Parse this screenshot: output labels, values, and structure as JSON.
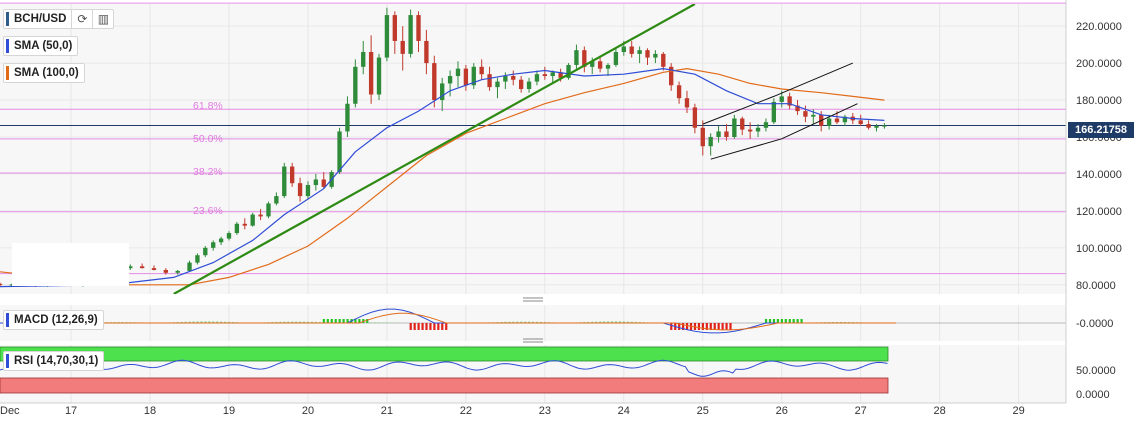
{
  "symbol": {
    "label": "BCH/USD"
  },
  "indicators": {
    "sma50": {
      "label": "SMA (50,0)",
      "color": "#2f4dd6"
    },
    "sma100": {
      "label": "SMA (100,0)",
      "color": "#e26b1a"
    },
    "macd": {
      "label": "MACD (12,26,9)"
    },
    "rsi": {
      "label": "RSI (14,70,30,1)"
    }
  },
  "toolbar": {
    "refresh_icon": "refresh-icon",
    "bars_icon": "bar-chart-icon"
  },
  "last_price": {
    "label": "166.21758"
  },
  "fib_levels": [
    {
      "label": "61.8%",
      "price": 175
    },
    {
      "label": "50.0%",
      "price": 159
    },
    {
      "label": "38.2%",
      "price": 140.5
    },
    {
      "label": "23.6%",
      "price": 119.5
    },
    {
      "label": "",
      "price": 232.5
    },
    {
      "label": "",
      "price": 86
    }
  ],
  "chart_data": {
    "type": "candlestick",
    "title": "BCH/USD",
    "x_tick_labels": [
      "Dec",
      "17",
      "18",
      "19",
      "20",
      "21",
      "22",
      "23",
      "24",
      "25",
      "26",
      "27",
      "28",
      "29"
    ],
    "x_ticks_day": [
      16,
      17,
      18,
      19,
      20,
      21,
      22,
      23,
      24,
      25,
      26,
      27,
      28,
      29
    ],
    "y_ticks": [
      80,
      100,
      120,
      140,
      160,
      180,
      200,
      220
    ],
    "y_tick_labels": [
      "80.0000",
      "100.0000",
      "120.0000",
      "140.0000",
      "160.0000",
      "180.0000",
      "200.0000",
      "220.0000"
    ],
    "ylim": [
      75,
      232
    ],
    "xlim": [
      16.1,
      29.6
    ],
    "grid": true,
    "sma50": [
      [
        16.1,
        79
      ],
      [
        17.5,
        80
      ],
      [
        18.3,
        84
      ],
      [
        18.8,
        92
      ],
      [
        19.3,
        104
      ],
      [
        19.7,
        118
      ],
      [
        20.2,
        132
      ],
      [
        20.6,
        152
      ],
      [
        21.0,
        165
      ],
      [
        21.4,
        174
      ],
      [
        21.8,
        185
      ],
      [
        22.2,
        191
      ],
      [
        22.6,
        194
      ],
      [
        23.0,
        196
      ],
      [
        23.5,
        193
      ],
      [
        24.0,
        194
      ],
      [
        24.5,
        197
      ],
      [
        24.9,
        194
      ],
      [
        25.3,
        185
      ],
      [
        25.7,
        178
      ],
      [
        26.1,
        178
      ],
      [
        26.5,
        172
      ],
      [
        26.9,
        170
      ],
      [
        27.3,
        169
      ]
    ],
    "sma100": [
      [
        16.1,
        87
      ],
      [
        17.0,
        83
      ],
      [
        17.7,
        80
      ],
      [
        18.5,
        80
      ],
      [
        19.0,
        84
      ],
      [
        19.5,
        91
      ],
      [
        20.0,
        101
      ],
      [
        20.5,
        116
      ],
      [
        21.0,
        133
      ],
      [
        21.5,
        150
      ],
      [
        22.0,
        162
      ],
      [
        22.5,
        170
      ],
      [
        23.0,
        178
      ],
      [
        23.5,
        184
      ],
      [
        24.0,
        189
      ],
      [
        24.5,
        195
      ],
      [
        24.8,
        197
      ],
      [
        25.2,
        194
      ],
      [
        25.6,
        189
      ],
      [
        26.0,
        186
      ],
      [
        26.5,
        184
      ],
      [
        26.9,
        182
      ],
      [
        27.3,
        180
      ]
    ],
    "trendline": [
      [
        18.3,
        75
      ],
      [
        24.9,
        232
      ]
    ],
    "channel_upper": [
      [
        25.0,
        167
      ],
      [
        25.9,
        182
      ],
      [
        26.9,
        200
      ]
    ],
    "channel_lower": [
      [
        25.1,
        148
      ],
      [
        26.0,
        159
      ],
      [
        26.96,
        178
      ]
    ],
    "candles": [
      [
        16.1,
        80.5,
        81.2,
        79.2,
        79.8
      ],
      [
        16.25,
        79.8,
        80.6,
        78.9,
        80.2
      ],
      [
        16.4,
        80.2,
        81.0,
        79.6,
        79.9
      ],
      [
        16.55,
        79.9,
        80.4,
        78.8,
        79.5
      ],
      [
        16.7,
        79.5,
        80.3,
        78.9,
        80.1
      ],
      [
        16.85,
        80.1,
        80.8,
        79.5,
        80.0
      ],
      [
        17.0,
        80.0,
        80.9,
        79.3,
        79.6
      ],
      [
        17.15,
        79.6,
        80.6,
        79.0,
        80.3
      ],
      [
        17.3,
        80.3,
        81.0,
        79.7,
        80.0
      ],
      [
        17.45,
        80.0,
        84.0,
        79.8,
        83.0
      ],
      [
        17.55,
        83.0,
        88.0,
        82.5,
        87.5
      ],
      [
        17.65,
        87.5,
        90.0,
        86.0,
        89.0
      ],
      [
        17.75,
        89.0,
        91.0,
        88.0,
        90.0
      ],
      [
        17.9,
        90.0,
        91.5,
        88.8,
        89.0
      ],
      [
        18.05,
        89.0,
        90.5,
        87.8,
        88.0
      ],
      [
        18.2,
        88.0,
        89.0,
        85.5,
        86.5
      ],
      [
        18.35,
        86.5,
        88.0,
        85.5,
        87.5
      ],
      [
        18.5,
        87.5,
        93.0,
        87.0,
        92.0
      ],
      [
        18.6,
        92.0,
        97.0,
        91.0,
        96.0
      ],
      [
        18.7,
        96.0,
        101.0,
        95.0,
        100.0
      ],
      [
        18.8,
        100.0,
        104.0,
        98.5,
        103.0
      ],
      [
        18.9,
        103.0,
        106.0,
        101.5,
        105.0
      ],
      [
        19.0,
        105.0,
        109.0,
        104.0,
        108.0
      ],
      [
        19.1,
        108.0,
        114.0,
        107.0,
        113.0
      ],
      [
        19.2,
        113.0,
        116.0,
        110.0,
        112.0
      ],
      [
        19.3,
        112.0,
        119.0,
        111.5,
        118.0
      ],
      [
        19.4,
        118.0,
        121.0,
        115.0,
        117.0
      ],
      [
        19.5,
        117.0,
        125.0,
        116.0,
        124.0
      ],
      [
        19.6,
        124.0,
        130.0,
        123.0,
        128.0
      ],
      [
        19.7,
        128.0,
        146.0,
        127.0,
        144.0
      ],
      [
        19.8,
        144.0,
        146.0,
        133.0,
        135.0
      ],
      [
        19.9,
        135.0,
        138.0,
        125.0,
        128.0
      ],
      [
        20.0,
        128.0,
        136.0,
        126.0,
        134.0
      ],
      [
        20.1,
        134.0,
        140.0,
        131.0,
        137.0
      ],
      [
        20.2,
        137.0,
        141.0,
        132.0,
        133.0
      ],
      [
        20.3,
        133.0,
        142.0,
        132.0,
        141.0
      ],
      [
        20.4,
        141.0,
        165.0,
        140.0,
        163.0
      ],
      [
        20.5,
        163.0,
        182.0,
        160.0,
        178.0
      ],
      [
        20.6,
        178.0,
        202.0,
        176.0,
        198.0
      ],
      [
        20.7,
        198.0,
        212.0,
        194.0,
        206.0
      ],
      [
        20.8,
        206.0,
        215.0,
        178.0,
        183.0
      ],
      [
        20.9,
        183.0,
        205.0,
        180.0,
        203.0
      ],
      [
        21.0,
        203.0,
        230.0,
        201.0,
        226.0
      ],
      [
        21.1,
        226.0,
        228.0,
        205.0,
        212.0
      ],
      [
        21.2,
        212.0,
        220.0,
        196.0,
        205.0
      ],
      [
        21.3,
        205.0,
        229.0,
        203.0,
        226.0
      ],
      [
        21.4,
        226.0,
        228.0,
        206.0,
        212.0
      ],
      [
        21.5,
        212.0,
        218.0,
        194.0,
        200.0
      ],
      [
        21.6,
        200.0,
        204.0,
        176.0,
        180.0
      ],
      [
        21.7,
        180.0,
        192.0,
        174.0,
        189.0
      ],
      [
        21.8,
        189.0,
        196.0,
        182.0,
        193.0
      ],
      [
        21.9,
        193.0,
        201.0,
        187.0,
        197.0
      ],
      [
        22.0,
        197.0,
        199.0,
        185.0,
        188.0
      ],
      [
        22.1,
        188.0,
        200.0,
        186.0,
        198.0
      ],
      [
        22.2,
        198.0,
        202.0,
        191.0,
        194.0
      ],
      [
        22.3,
        194.0,
        198.0,
        185.0,
        187.0
      ],
      [
        22.4,
        187.0,
        192.0,
        181.0,
        190.0
      ],
      [
        22.5,
        190.0,
        195.0,
        186.0,
        193.0
      ],
      [
        22.6,
        193.0,
        196.0,
        188.0,
        191.0
      ],
      [
        22.7,
        191.0,
        193.0,
        184.0,
        186.0
      ],
      [
        22.8,
        186.0,
        192.0,
        184.0,
        190.0
      ],
      [
        22.9,
        190.0,
        196.0,
        188.0,
        194.0
      ],
      [
        23.0,
        194.0,
        198.0,
        191.0,
        193.0
      ],
      [
        23.1,
        193.0,
        196.0,
        189.0,
        195.0
      ],
      [
        23.2,
        195.0,
        197.0,
        190.0,
        192.0
      ],
      [
        23.3,
        192.0,
        200.0,
        191.0,
        199.0
      ],
      [
        23.4,
        199.0,
        210.0,
        197.0,
        207.0
      ],
      [
        23.5,
        207.0,
        209.0,
        195.0,
        198.0
      ],
      [
        23.6,
        198.0,
        203.0,
        194.0,
        201.0
      ],
      [
        23.7,
        201.0,
        204.0,
        195.0,
        197.0
      ],
      [
        23.8,
        197.0,
        200.0,
        193.0,
        199.0
      ],
      [
        23.9,
        199.0,
        208.0,
        198.0,
        206.0
      ],
      [
        24.0,
        206.0,
        212.0,
        204.0,
        209.0
      ],
      [
        24.1,
        209.0,
        212.0,
        203.0,
        205.0
      ],
      [
        24.2,
        205.0,
        209.0,
        200.0,
        207.0
      ],
      [
        24.3,
        207.0,
        208.0,
        199.0,
        203.0
      ],
      [
        24.4,
        203.0,
        207.0,
        200.0,
        205.0
      ],
      [
        24.5,
        205.0,
        206.0,
        196.0,
        198.0
      ],
      [
        24.6,
        198.0,
        200.0,
        185.0,
        188.0
      ],
      [
        24.7,
        188.0,
        190.0,
        178.0,
        181.0
      ],
      [
        24.8,
        181.0,
        185.0,
        173.0,
        176.0
      ],
      [
        24.9,
        176.0,
        178.0,
        162.0,
        165.0
      ],
      [
        25.0,
        165.0,
        169.0,
        150.0,
        155.0
      ],
      [
        25.1,
        155.0,
        162.0,
        150.0,
        160.0
      ],
      [
        25.2,
        160.0,
        166.0,
        157.0,
        163.0
      ],
      [
        25.3,
        163.0,
        167.0,
        158.0,
        160.0
      ],
      [
        25.4,
        160.0,
        172.0,
        159.0,
        170.0
      ],
      [
        25.5,
        170.0,
        171.0,
        161.0,
        164.0
      ],
      [
        25.6,
        164.0,
        168.0,
        159.0,
        163.0
      ],
      [
        25.7,
        163.0,
        167.0,
        160.0,
        165.0
      ],
      [
        25.8,
        165.0,
        170.0,
        163.0,
        168.0
      ],
      [
        25.9,
        168.0,
        181.0,
        167.0,
        179.0
      ],
      [
        26.0,
        179.0,
        185.0,
        176.0,
        182.0
      ],
      [
        26.1,
        182.0,
        184.0,
        175.0,
        177.0
      ],
      [
        26.2,
        177.0,
        180.0,
        172.0,
        174.0
      ],
      [
        26.3,
        174.0,
        177.0,
        168.0,
        171.0
      ],
      [
        26.4,
        171.0,
        175.0,
        167.0,
        172.0
      ],
      [
        26.5,
        172.0,
        174.0,
        163.0,
        166.0
      ],
      [
        26.6,
        166.0,
        172.0,
        164.0,
        170.0
      ],
      [
        26.7,
        170.0,
        174.0,
        167.0,
        168.0
      ],
      [
        26.8,
        168.0,
        172.0,
        166.0,
        171.0
      ],
      [
        26.9,
        171.0,
        173.0,
        167.0,
        169.0
      ],
      [
        27.0,
        169.0,
        172.0,
        166.0,
        167.0
      ],
      [
        27.1,
        167.0,
        169.0,
        164.0,
        165.0
      ],
      [
        27.2,
        165.0,
        167.0,
        163.0,
        166.0
      ],
      [
        27.3,
        166.0,
        167.5,
        164.5,
        166.2
      ]
    ],
    "macd_panel": {
      "ytick_label": "-0.0000"
    },
    "rsi_panel": {
      "ytick_labels": [
        "50.0000",
        "0.0000"
      ],
      "overbought": 70,
      "oversold": 30
    }
  }
}
